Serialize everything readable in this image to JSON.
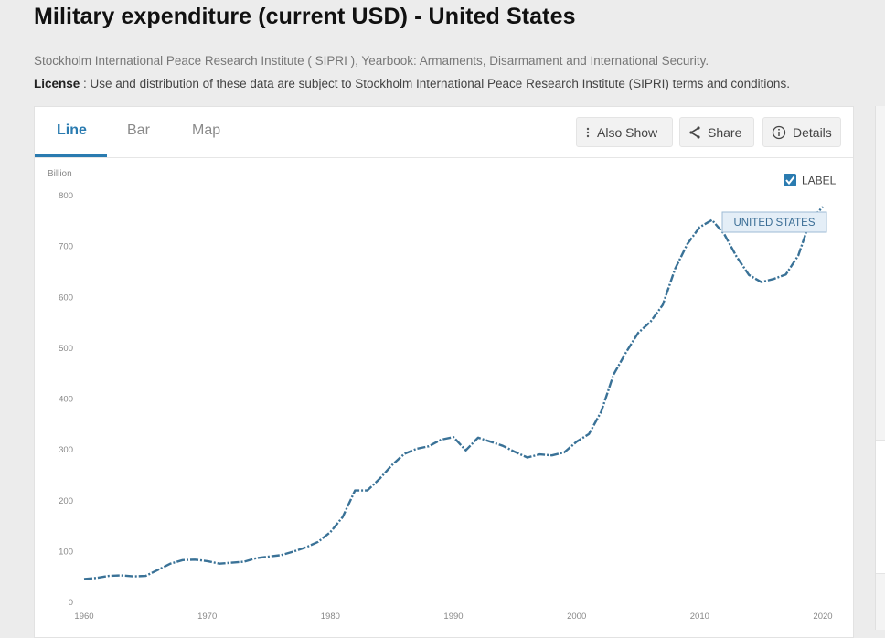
{
  "page": {
    "title": "Military expenditure (current USD) - United States",
    "source": "Stockholm International Peace Research Institute ( SIPRI ), Yearbook: Armaments, Disarmament and International Security.",
    "license_label": "License",
    "license_text": " : Use and distribution of these data are subject to Stockholm International Peace Research Institute (SIPRI) terms and conditions."
  },
  "tabs": [
    {
      "label": "Line",
      "active": true
    },
    {
      "label": "Bar",
      "active": false
    },
    {
      "label": "Map",
      "active": false
    }
  ],
  "toolbar": {
    "also_show": "Also Show",
    "share": "Share",
    "details": "Details"
  },
  "label_toggle": {
    "text": "LABEL",
    "checked": true
  },
  "colors": {
    "accent": "#2a7bb0",
    "line": "#3a7297",
    "tooltip_bg": "#e4eef7",
    "tooltip_border": "#9ebbd4"
  },
  "chart_data": {
    "type": "line",
    "ylabel": "Billion",
    "ylim": [
      0,
      800
    ],
    "yticks": [
      0,
      100,
      200,
      300,
      400,
      500,
      600,
      700,
      800
    ],
    "xlim": [
      1960,
      2020
    ],
    "xticks": [
      1960,
      1970,
      1980,
      1990,
      2000,
      2010,
      2020
    ],
    "grid": false,
    "series": [
      {
        "name": "UNITED STATES",
        "x": [
          1960,
          1961,
          1962,
          1963,
          1964,
          1965,
          1966,
          1967,
          1968,
          1969,
          1970,
          1971,
          1972,
          1973,
          1974,
          1975,
          1976,
          1977,
          1978,
          1979,
          1980,
          1981,
          1982,
          1983,
          1984,
          1985,
          1986,
          1987,
          1988,
          1989,
          1990,
          1991,
          1992,
          1993,
          1994,
          1995,
          1996,
          1997,
          1998,
          1999,
          2000,
          2001,
          2002,
          2003,
          2004,
          2005,
          2006,
          2007,
          2008,
          2009,
          2010,
          2011,
          2012,
          2013,
          2014,
          2015,
          2016,
          2017,
          2018,
          2019,
          2020
        ],
        "values": [
          46,
          48,
          52,
          53,
          51,
          52,
          64,
          76,
          83,
          84,
          81,
          76,
          78,
          80,
          87,
          90,
          93,
          100,
          108,
          119,
          138,
          168,
          220,
          220,
          243,
          270,
          292,
          302,
          307,
          320,
          325,
          299,
          324,
          316,
          308,
          296,
          285,
          291,
          289,
          295,
          316,
          331,
          375,
          448,
          491,
          530,
          552,
          585,
          656,
          705,
          738,
          752,
          724,
          680,
          644,
          630,
          636,
          645,
          682,
          752,
          778
        ],
        "label": "UNITED STATES"
      }
    ]
  }
}
